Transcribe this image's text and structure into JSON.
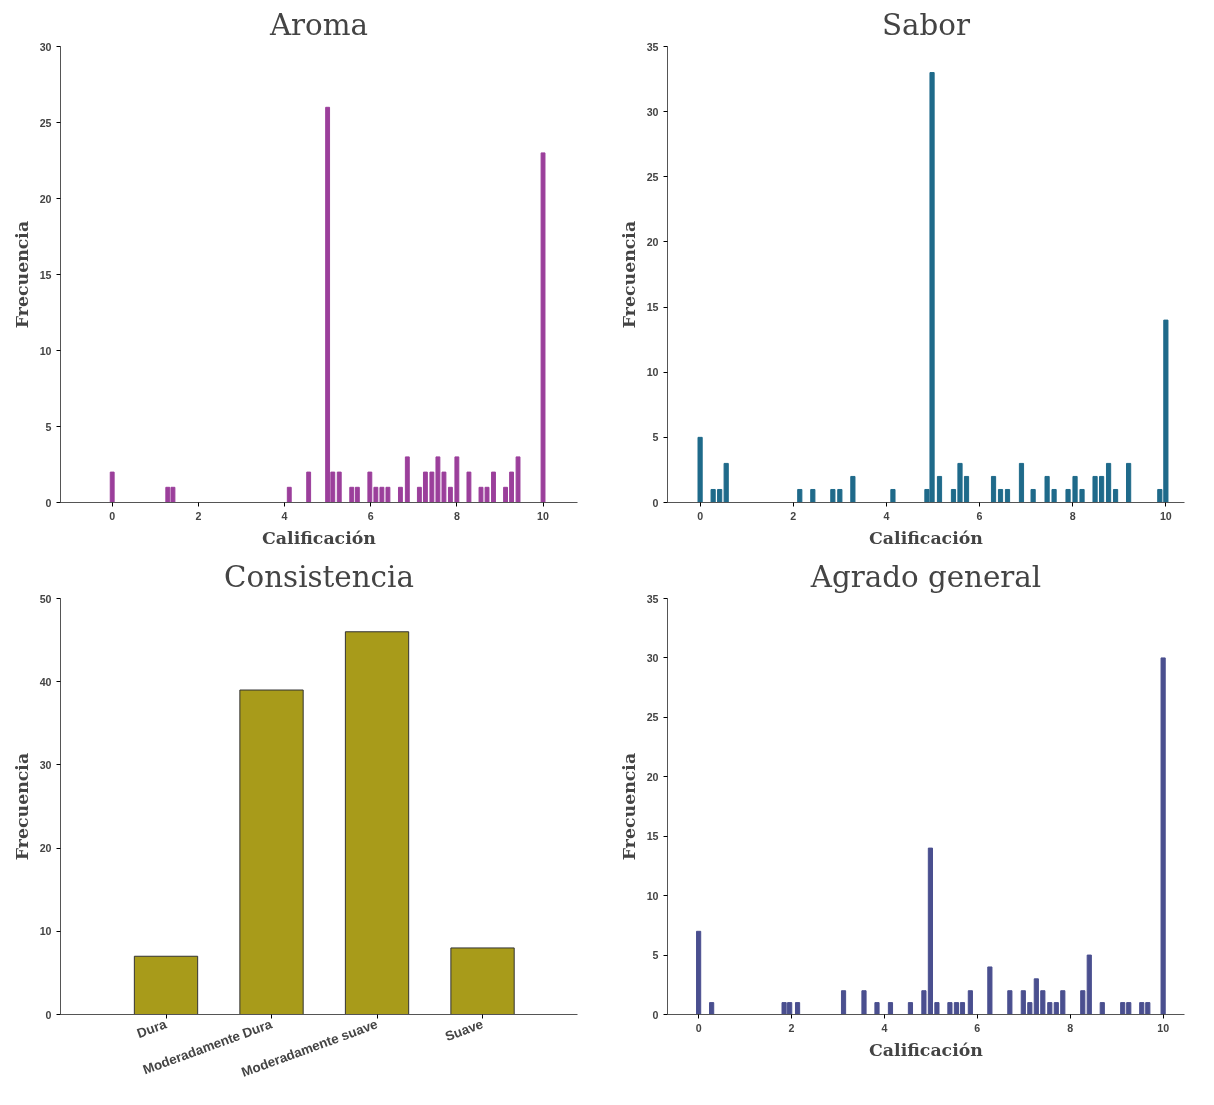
{
  "chart_data": [
    {
      "type": "bar",
      "title": "Aroma",
      "xlabel": "Calificación",
      "ylabel": "Frecuencia",
      "color": "#9b3f9b",
      "x": [
        0,
        1.29,
        1.41,
        4.11,
        4.56,
        5.0,
        5.12,
        5.27,
        5.56,
        5.69,
        5.98,
        6.12,
        6.26,
        6.4,
        6.69,
        6.85,
        7.13,
        7.27,
        7.42,
        7.56,
        7.7,
        7.85,
        8.0,
        8.28,
        8.56,
        8.7,
        8.85,
        9.13,
        9.27,
        9.42,
        10
      ],
      "values": [
        2,
        1,
        1,
        1,
        2,
        26,
        2,
        2,
        1,
        1,
        2,
        1,
        1,
        1,
        1,
        3,
        1,
        2,
        2,
        3,
        2,
        1,
        3,
        2,
        1,
        1,
        2,
        1,
        2,
        3,
        23
      ],
      "xlim": [
        -1.2,
        10.8
      ],
      "xticks": [
        0,
        2,
        4,
        6,
        8,
        10
      ],
      "ylim": [
        0,
        30
      ],
      "yticks": [
        0,
        5,
        10,
        15,
        20,
        25,
        30
      ]
    },
    {
      "type": "bar",
      "title": "Sabor",
      "xlabel": "Calificación",
      "ylabel": "Frecuencia",
      "color": "#1f6a8a",
      "x": [
        0,
        0.28,
        0.42,
        0.56,
        2.14,
        2.42,
        2.85,
        3.0,
        3.28,
        4.14,
        4.87,
        4.98,
        5.14,
        5.44,
        5.58,
        5.72,
        6.3,
        6.45,
        6.6,
        6.9,
        7.15,
        7.45,
        7.6,
        7.9,
        8.05,
        8.2,
        8.48,
        8.62,
        8.77,
        8.92,
        9.2,
        9.87,
        10
      ],
      "values": [
        5,
        1,
        1,
        3,
        1,
        1,
        1,
        1,
        2,
        1,
        1,
        33,
        2,
        1,
        3,
        2,
        2,
        1,
        1,
        3,
        1,
        2,
        1,
        1,
        2,
        1,
        2,
        2,
        3,
        1,
        3,
        1,
        14
      ],
      "xlim": [
        -0.7,
        10.4
      ],
      "xticks": [
        0,
        2,
        4,
        6,
        8,
        10
      ],
      "ylim": [
        0,
        35
      ],
      "yticks": [
        0,
        5,
        10,
        15,
        20,
        25,
        30,
        35
      ]
    },
    {
      "type": "bar",
      "title": "Consistencia",
      "ylabel": "Frecuencia",
      "color": "#a89b1a",
      "categories": [
        "Dura",
        "Moderadamente Dura",
        "Moderadamente suave",
        "Suave"
      ],
      "values": [
        7,
        39,
        46,
        8
      ],
      "ylim": [
        0,
        50
      ],
      "yticks": [
        0,
        10,
        20,
        30,
        40,
        50
      ]
    },
    {
      "type": "bar",
      "title": "Agrado general",
      "xlabel": "Calificación",
      "ylabel": "Frecuencia",
      "color": "#4a4f8f",
      "x": [
        0,
        0.28,
        1.84,
        1.96,
        2.13,
        3.12,
        3.56,
        3.84,
        4.13,
        4.56,
        4.85,
        4.99,
        5.13,
        5.41,
        5.55,
        5.68,
        5.85,
        6.27,
        6.7,
        6.99,
        7.13,
        7.27,
        7.41,
        7.56,
        7.7,
        7.84,
        8.27,
        8.41,
        8.69,
        9.13,
        9.26,
        9.54,
        9.67,
        10
      ],
      "values": [
        7,
        1,
        1,
        1,
        1,
        2,
        2,
        1,
        1,
        1,
        2,
        14,
        1,
        1,
        1,
        1,
        2,
        4,
        2,
        2,
        1,
        3,
        2,
        1,
        1,
        2,
        2,
        5,
        1,
        1,
        1,
        1,
        1,
        30
      ],
      "xlim": [
        -0.67,
        10.46
      ],
      "xticks": [
        0,
        2,
        4,
        6,
        8,
        10
      ],
      "ylim": [
        0,
        35
      ],
      "yticks": [
        0,
        5,
        10,
        15,
        20,
        25,
        30,
        35
      ]
    }
  ]
}
